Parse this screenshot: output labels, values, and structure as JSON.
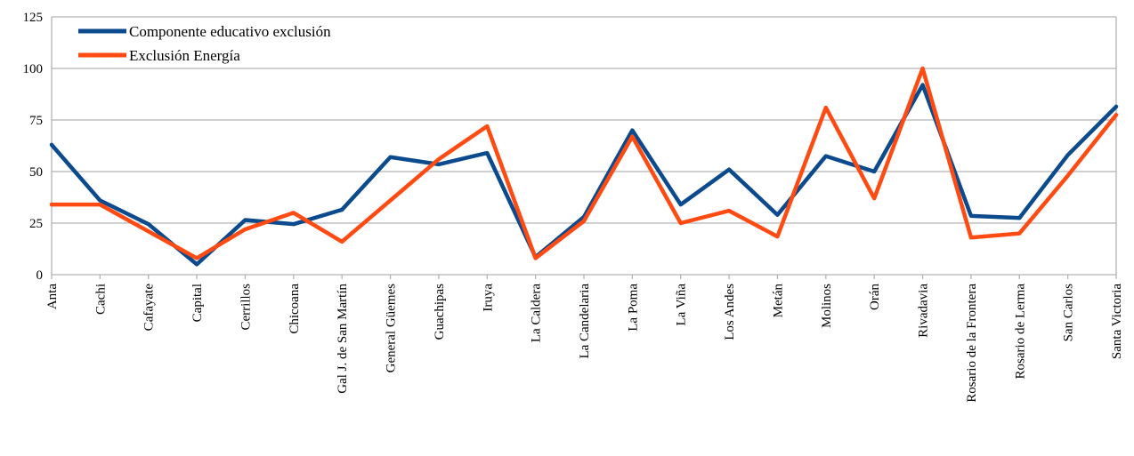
{
  "chart_data": {
    "type": "line",
    "categories": [
      "Anta",
      "Cachi",
      "Cafayate",
      "Capital",
      "Cerrillos",
      "Chicoana",
      "Gal J. de San Martín",
      "General Güemes",
      "Guachipas",
      "Iruya",
      "La Caldera",
      "La Candelaria",
      "La Poma",
      "La Viña",
      "Los Andes",
      "Metán",
      "Molinos",
      "Orán",
      "Rivadavia",
      "Rosario de la Frontera",
      "Rosario de Lerma",
      "San Carlos",
      "Santa Victoria"
    ],
    "series": [
      {
        "name": "Componente educativo exclusión",
        "color": "#0b4a8c",
        "values": [
          63,
          36,
          24.5,
          5,
          26.5,
          24.5,
          31.5,
          57,
          53.5,
          59,
          8.5,
          28,
          70,
          34,
          51,
          29,
          57.5,
          50,
          92,
          28.5,
          27.5,
          58,
          81.5
        ]
      },
      {
        "name": "Exclusión Energía",
        "color": "#ff4a12",
        "values": [
          34,
          34,
          21,
          8,
          22,
          30,
          16,
          36,
          56,
          72,
          8,
          26,
          67,
          25,
          31,
          18.5,
          81,
          37,
          100,
          18,
          20,
          48,
          77.5
        ]
      }
    ],
    "yticks": [
      0,
      25,
      50,
      75,
      100,
      125
    ],
    "ylim": [
      0,
      125
    ],
    "grid": true,
    "legend": "top-left",
    "xlabel": "",
    "ylabel": "",
    "title": ""
  }
}
